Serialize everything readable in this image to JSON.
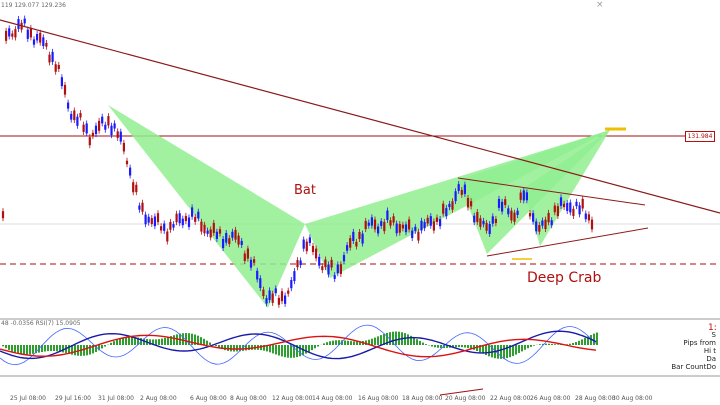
{
  "header": {
    "ohlc_text": "119  129.077  129.236",
    "indicator_text": "48 -0.0356  RSI(7) 15.0905"
  },
  "labels": {
    "bat": "Bat",
    "deep_crab": "Deep Crab",
    "price_tag": "131.984",
    "indicator_value": "1:"
  },
  "info_panel": [
    "S",
    "Pips from",
    "Hi t",
    "Da",
    "Bar CountDo"
  ],
  "x_axis": [
    "25 Jul 08:00",
    "29 Jul 16:00",
    "31 Jul 08:00",
    "2 Aug 08:00",
    "6 Aug 08:00",
    "8 Aug 08:00",
    "12 Aug 08:00",
    "14 Aug 08:00",
    "16 Aug 08:00",
    "18 Aug 08:00",
    "20 Aug 08:00",
    "22 Aug 08:00",
    "26 Aug 08:00",
    "28 Aug 08:00",
    "30 Aug 08:00"
  ],
  "colors": {
    "pattern_fill": "#90ee90",
    "bull_candle": "#1a1aff",
    "bear_candle": "#b01010",
    "trend_line": "#8b1a1a",
    "target_line": "#f0c000"
  }
}
